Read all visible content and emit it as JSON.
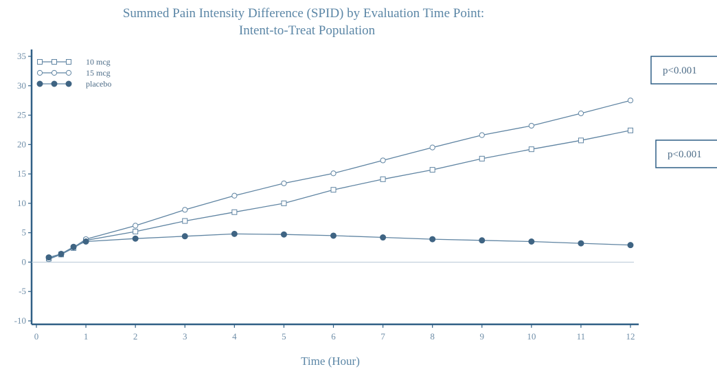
{
  "chart_data": {
    "type": "line",
    "title": "Summed Pain Intensity Difference (SPID) by Evaluation Time Point:",
    "subtitle": "Intent-to-Treat Population",
    "xlabel": "Time (Hour)",
    "ylabel": "",
    "xlim": [
      0,
      12
    ],
    "ylim": [
      -10,
      35
    ],
    "x_ticks": [
      "0",
      "1",
      "2",
      "3",
      "4",
      "5",
      "6",
      "7",
      "8",
      "9",
      "10",
      "11",
      "12"
    ],
    "y_ticks": [
      "-10",
      "-5",
      "0",
      "5",
      "10",
      "15",
      "20",
      "25",
      "30",
      "35"
    ],
    "grid": false,
    "legend_position": "top-left",
    "series": [
      {
        "name": "10 mcg",
        "marker": "open-square",
        "x": [
          0.25,
          0.5,
          0.75,
          1,
          2,
          3,
          4,
          5,
          6,
          7,
          8,
          9,
          10,
          11,
          12
        ],
        "values": [
          0.6,
          1.3,
          2.4,
          3.7,
          5.2,
          7.0,
          8.5,
          10.0,
          12.3,
          14.1,
          15.7,
          17.6,
          19.2,
          20.7,
          22.4
        ]
      },
      {
        "name": "15 mcg",
        "marker": "open-circle",
        "x": [
          0.25,
          0.5,
          0.75,
          1,
          2,
          3,
          4,
          5,
          6,
          7,
          8,
          9,
          10,
          11,
          12
        ],
        "values": [
          0.5,
          1.3,
          2.5,
          3.9,
          6.2,
          8.9,
          11.3,
          13.4,
          15.1,
          17.3,
          19.5,
          21.6,
          23.2,
          25.3,
          27.5
        ]
      },
      {
        "name": "placebo",
        "marker": "filled-circle",
        "x": [
          0.25,
          0.5,
          0.75,
          1,
          2,
          3,
          4,
          5,
          6,
          7,
          8,
          9,
          10,
          11,
          12
        ],
        "values": [
          0.8,
          1.4,
          2.6,
          3.5,
          4.0,
          4.4,
          4.8,
          4.7,
          4.5,
          4.2,
          3.9,
          3.7,
          3.5,
          3.2,
          2.9
        ]
      }
    ],
    "annotations": [
      {
        "text": "p<0.001",
        "series": "15 mcg"
      },
      {
        "text": "p<0.001",
        "series": "10 mcg"
      }
    ],
    "colors": {
      "series_line": "#5f84a2",
      "series_marker_fill": "#3f6483",
      "axis": "#2f5f85",
      "zero_line": "#b8c8d6",
      "text": "#5b86a6"
    }
  }
}
